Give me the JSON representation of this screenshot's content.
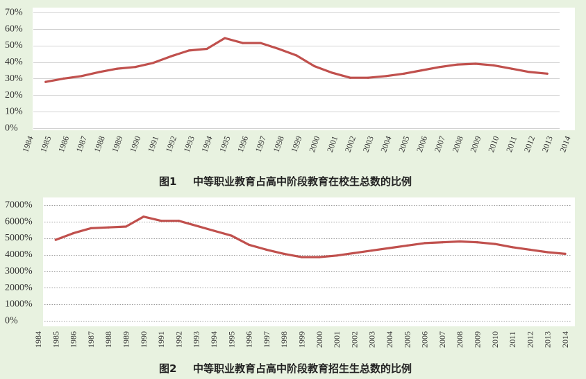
{
  "figure": {
    "background": "#e8f2e0"
  },
  "chart_data": [
    {
      "type": "line",
      "caption": {
        "label": "图1",
        "text": "中等职业教育占高中阶段教育在校生总数的比例"
      },
      "xlim": [
        1984,
        2014
      ],
      "ylim": [
        0,
        70
      ],
      "y_ticks": [
        0,
        10,
        20,
        30,
        40,
        50,
        60,
        70
      ],
      "y_tick_labels": [
        "0%",
        "10%",
        "20%",
        "30%",
        "40%",
        "50%",
        "60%",
        "70%"
      ],
      "x_tick_labels": [
        "1984",
        "1985",
        "1986",
        "1987",
        "1988",
        "1989",
        "1990",
        "1991",
        "1992",
        "1993",
        "1994",
        "1995",
        "1996",
        "1997",
        "1998",
        "1999",
        "2000",
        "2001",
        "2002",
        "2003",
        "2004",
        "2005",
        "2006",
        "2007",
        "2008",
        "2009",
        "2010",
        "2011",
        "2012",
        "2013",
        "2014"
      ],
      "grid": true,
      "legend": "none",
      "series": [
        {
          "color": "#c0504d",
          "x": [
            1985,
            1986,
            1987,
            1988,
            1989,
            1990,
            1991,
            1992,
            1993,
            1994,
            1995,
            1996,
            1997,
            1998,
            1999,
            2000,
            2001,
            2002,
            2003,
            2004,
            2005,
            2006,
            2007,
            2008,
            2009,
            2010,
            2011,
            2012,
            2013
          ],
          "values": [
            28,
            30,
            31.5,
            34,
            36,
            37,
            39.5,
            43.5,
            47,
            48,
            54.5,
            51.5,
            51.5,
            48,
            44,
            37.5,
            33.5,
            30.5,
            30.5,
            31.5,
            33,
            35,
            37,
            38.5,
            39,
            38,
            36,
            34,
            33
          ]
        }
      ]
    },
    {
      "type": "line",
      "caption": {
        "label": "图2",
        "text": "中等职业教育占高中阶段教育招生生总数的比例"
      },
      "xlim": [
        1984,
        2014
      ],
      "ylim": [
        0,
        7000
      ],
      "y_ticks": [
        0,
        1000,
        2000,
        3000,
        4000,
        5000,
        6000,
        7000
      ],
      "y_tick_labels": [
        "0%",
        "1000%",
        "2000%",
        "3000%",
        "4000%",
        "5000%",
        "6000%",
        "7000%"
      ],
      "x_tick_labels": [
        "1984",
        "1985",
        "1986",
        "1987",
        "1988",
        "1989",
        "1990",
        "1991",
        "1992",
        "1993",
        "1994",
        "1995",
        "1996",
        "1997",
        "1998",
        "1999",
        "2000",
        "2001",
        "2002",
        "2003",
        "2004",
        "2005",
        "2006",
        "2007",
        "2008",
        "2009",
        "2010",
        "2011",
        "2012",
        "2013",
        "2014"
      ],
      "grid": true,
      "legend": "none",
      "series": [
        {
          "color": "#c0504d",
          "x": [
            1985,
            1986,
            1987,
            1988,
            1989,
            1990,
            1991,
            1992,
            1993,
            1994,
            1995,
            1996,
            1997,
            1998,
            1999,
            2000,
            2001,
            2002,
            2003,
            2004,
            2005,
            2006,
            2007,
            2008,
            2009,
            2010,
            2011,
            2012,
            2013,
            2014
          ],
          "values": [
            4900,
            5300,
            5600,
            5650,
            5700,
            6300,
            6050,
            6050,
            5750,
            5450,
            5150,
            4600,
            4300,
            4050,
            3850,
            3850,
            3950,
            4100,
            4250,
            4400,
            4550,
            4700,
            4750,
            4800,
            4750,
            4650,
            4450,
            4300,
            4150,
            4050
          ]
        }
      ]
    }
  ]
}
